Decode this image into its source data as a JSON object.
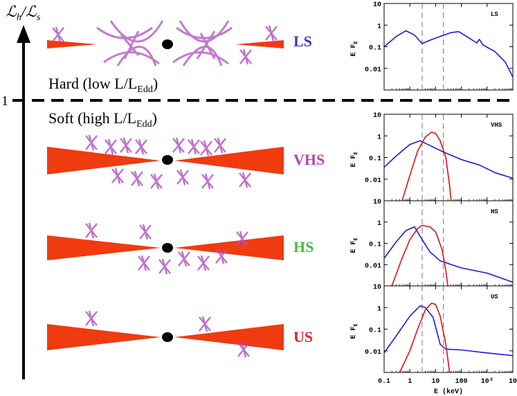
{
  "axis": {
    "y_label_main": "ℒ",
    "y_label_sub1": "h",
    "y_label_sep": "/",
    "y_label_sub2": "s",
    "threshold_label": "1"
  },
  "regimes": {
    "hard": {
      "text": "Hard (low L/L",
      "sub": "Edd",
      "close": ")"
    },
    "soft": {
      "text": "Soft (high L/L",
      "sub": "Edd",
      "close": ")"
    }
  },
  "states": [
    {
      "key": "LS",
      "label": "LS",
      "color": "#3a3ad0"
    },
    {
      "key": "VHS",
      "label": "VHS",
      "color": "#c040a8"
    },
    {
      "key": "HS",
      "label": "HS",
      "color": "#40c040"
    },
    {
      "key": "US",
      "label": "US",
      "color": "#e82020"
    }
  ],
  "colors": {
    "disk": "#f03a10",
    "corona": "#b050c0",
    "thermal_curve": "#e01010",
    "power_curve": "#1a1ae0",
    "band_lines": "#6a6ae8"
  },
  "panel_axes": {
    "y_label": "E F",
    "y_label_sub": "E",
    "x_label": "E (keV)",
    "x_ticks": [
      "0.1",
      "1",
      "10",
      "100",
      "10³",
      "10"
    ],
    "y_ticks": [
      "10",
      "1",
      "0.1",
      "0.01"
    ]
  },
  "chart_data": [
    {
      "type": "line",
      "title": "LS",
      "xlabel": "E (keV)",
      "ylabel": "E F_E",
      "x_scale": "log",
      "y_scale": "log",
      "xlim": [
        0.1,
        10000
      ],
      "ylim": [
        0.001,
        10
      ],
      "band_lines_keV": [
        3,
        20
      ],
      "series": [
        {
          "values": [
            [
              0.1,
              0.1
            ],
            [
              0.3,
              0.3
            ],
            [
              0.7,
              0.55
            ],
            [
              1.5,
              0.35
            ],
            [
              3,
              0.14
            ],
            [
              6,
              0.2
            ],
            [
              15,
              0.3
            ],
            [
              40,
              0.45
            ],
            [
              80,
              0.5
            ],
            [
              200,
              0.25
            ],
            [
              400,
              0.15
            ],
            [
              500,
              0.22
            ],
            [
              700,
              0.12
            ],
            [
              2000,
              0.06
            ],
            [
              5000,
              0.02
            ],
            [
              10000,
              0.004
            ]
          ]
        }
      ]
    },
    {
      "type": "line",
      "title": "VHS",
      "xlabel": "E (keV)",
      "ylabel": "E F_E",
      "x_scale": "log",
      "y_scale": "log",
      "xlim": [
        0.1,
        10000
      ],
      "ylim": [
        0.001,
        10
      ],
      "band_lines_keV": [
        3,
        20
      ],
      "series": [
        {
          "values": [
            [
              0.1,
              0.035
            ],
            [
              0.3,
              0.12
            ],
            [
              1,
              0.4
            ],
            [
              2.5,
              0.6
            ],
            [
              5,
              0.4
            ],
            [
              20,
              0.18
            ],
            [
              100,
              0.08
            ],
            [
              500,
              0.045
            ],
            [
              2000,
              0.02
            ],
            [
              10000,
              0.011
            ]
          ]
        },
        {
          "values": [
            [
              0.5,
              0.001
            ],
            [
              1,
              0.015
            ],
            [
              2,
              0.2
            ],
            [
              4,
              0.9
            ],
            [
              7,
              1.5
            ],
            [
              10,
              1.3
            ],
            [
              15,
              0.6
            ],
            [
              25,
              0.1
            ],
            [
              35,
              0.005
            ],
            [
              40,
              0.001
            ]
          ]
        }
      ]
    },
    {
      "type": "line",
      "title": "HS",
      "xlabel": "E (keV)",
      "ylabel": "E F_E",
      "x_scale": "log",
      "y_scale": "log",
      "xlim": [
        0.1,
        10000
      ],
      "ylim": [
        0.001,
        10
      ],
      "band_lines_keV": [
        3,
        20
      ],
      "series": [
        {
          "values": [
            [
              0.1,
              0.02
            ],
            [
              0.3,
              0.12
            ],
            [
              0.7,
              0.4
            ],
            [
              1.5,
              0.6
            ],
            [
              3,
              0.15
            ],
            [
              6,
              0.04
            ],
            [
              15,
              0.015
            ],
            [
              100,
              0.007
            ],
            [
              1000,
              0.004
            ],
            [
              10000,
              0.0015
            ]
          ]
        },
        {
          "values": [
            [
              0.2,
              0.001
            ],
            [
              0.5,
              0.02
            ],
            [
              1,
              0.15
            ],
            [
              2,
              0.5
            ],
            [
              3,
              0.7
            ],
            [
              6,
              0.6
            ],
            [
              10,
              0.35
            ],
            [
              18,
              0.05
            ],
            [
              25,
              0.005
            ],
            [
              30,
              0.001
            ]
          ]
        }
      ]
    },
    {
      "type": "line",
      "title": "US",
      "xlabel": "E (keV)",
      "ylabel": "E F_E",
      "x_scale": "log",
      "y_scale": "log",
      "xlim": [
        0.1,
        10000
      ],
      "ylim": [
        0.001,
        10
      ],
      "band_lines_keV": [
        3,
        20
      ],
      "series": [
        {
          "values": [
            [
              0.1,
              0.008
            ],
            [
              0.3,
              0.05
            ],
            [
              1,
              0.4
            ],
            [
              2.5,
              1.2
            ],
            [
              4,
              1.0
            ],
            [
              8,
              0.35
            ],
            [
              15,
              0.02
            ],
            [
              25,
              0.012
            ],
            [
              100,
              0.011
            ],
            [
              1000,
              0.008
            ],
            [
              10000,
              0.006
            ]
          ]
        },
        {
          "values": [
            [
              0.4,
              0.001
            ],
            [
              1,
              0.01
            ],
            [
              2,
              0.1
            ],
            [
              4,
              0.8
            ],
            [
              7,
              1.6
            ],
            [
              10,
              1.4
            ],
            [
              15,
              0.4
            ],
            [
              25,
              0.02
            ],
            [
              35,
              0.001
            ]
          ]
        }
      ]
    }
  ]
}
